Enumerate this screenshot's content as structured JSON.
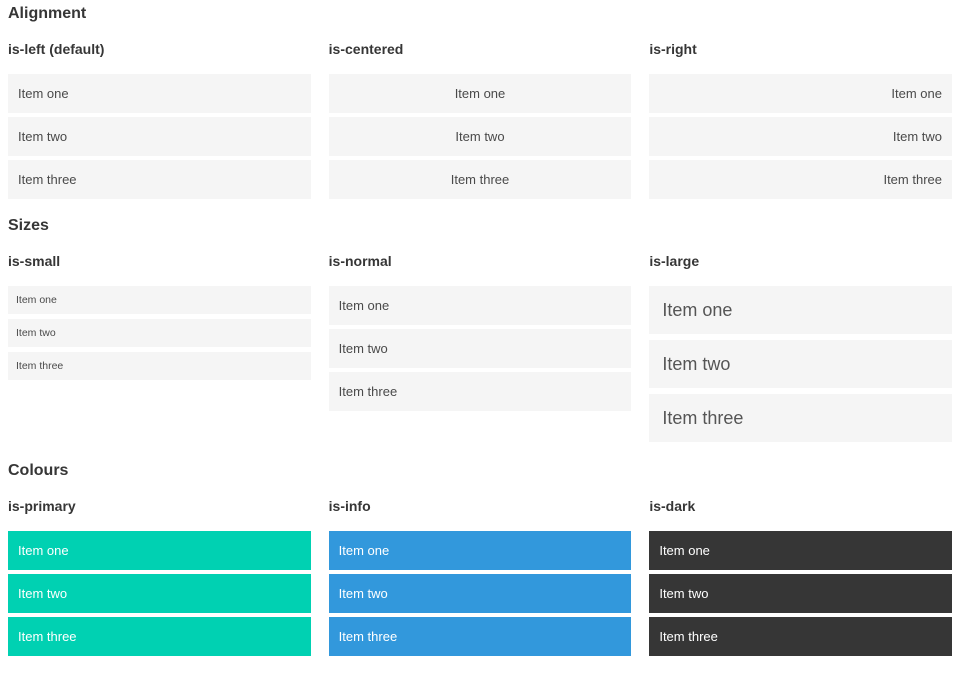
{
  "items": [
    "Item one",
    "Item two",
    "Item three"
  ],
  "sections": [
    {
      "title": "Alignment",
      "variants": [
        {
          "label": "is-left (default)"
        },
        {
          "label": "is-centered"
        },
        {
          "label": "is-right"
        }
      ]
    },
    {
      "title": "Sizes",
      "variants": [
        {
          "label": "is-small"
        },
        {
          "label": "is-normal"
        },
        {
          "label": "is-large"
        }
      ]
    },
    {
      "title": "Colours",
      "variants": [
        {
          "label": "is-primary"
        },
        {
          "label": "is-info"
        },
        {
          "label": "is-dark"
        }
      ]
    }
  ],
  "colors": {
    "primary": "#00d1b2",
    "info": "#3298dc",
    "dark": "#363636",
    "item_background": "#f5f5f5",
    "item_text": "#4a4a4a",
    "heading_text": "#363636",
    "colored_item_text": "#ffffff"
  }
}
